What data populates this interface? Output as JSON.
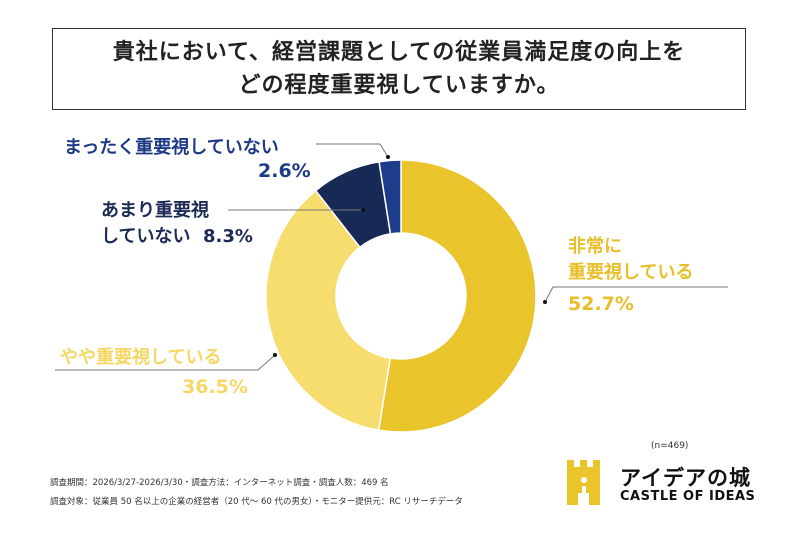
{
  "title_lines": [
    "貴社において、経営課題としての従業員満足度の向上を",
    "どの程度重要視していますか。"
  ],
  "chart_data": {
    "type": "pie",
    "style": "donut",
    "start": "top, clockwise",
    "slices": [
      {
        "label_lines": [
          "非常に",
          "重要視している"
        ],
        "value": 52.7,
        "value_label": "52.7%",
        "color": "#E9C42B",
        "text_color": "#E7BF2A"
      },
      {
        "label_lines": [
          "やや重要視している"
        ],
        "value": 36.5,
        "value_label": "36.5%",
        "color": "#F7DD6E",
        "text_color": "#F5D766"
      },
      {
        "label_lines": [
          "あまり重要視",
          "していない"
        ],
        "value": 8.3,
        "value_label": "8.3%",
        "color": "#162A55",
        "text_color": "#1C2B55"
      },
      {
        "label_lines": [
          "まったく重要視していない"
        ],
        "value": 2.6,
        "value_label": "2.6%",
        "color": "#1D3D8C",
        "text_color": "#1D3A85"
      }
    ]
  },
  "sample_size": "(n=469)",
  "footer": [
    "調査期間：2026/3/27-2026/3/30・調査方法：インターネット調査・調査人数：469 名",
    "調査対象：従業員 50 名以上の企業の経営者（20 代～ 60 代の男女）・モニター提供元：RC リサーチデータ"
  ],
  "logo": {
    "name_ja": "アイデアの城",
    "name_en": "CASTLE OF IDEAS",
    "color": "#E9C42B"
  }
}
